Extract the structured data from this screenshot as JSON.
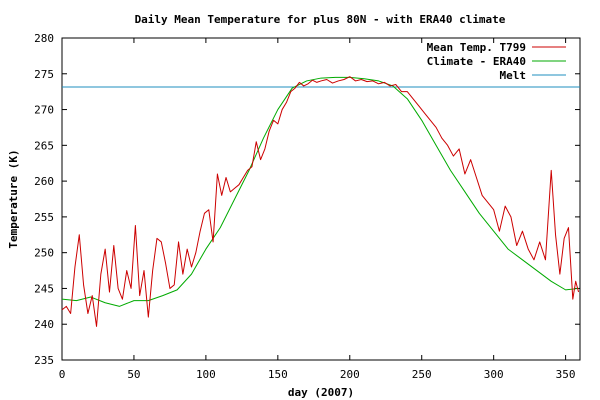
{
  "chart_data": {
    "type": "line",
    "title": "Daily Mean Temperature for plus 80N - with ERA40 climate",
    "xlabel": "day (2007)",
    "ylabel": "Temperature (K)",
    "xlim": [
      0,
      360
    ],
    "ylim": [
      235,
      280
    ],
    "x_ticks": [
      0,
      50,
      100,
      150,
      200,
      250,
      300,
      350
    ],
    "y_ticks": [
      235,
      240,
      245,
      250,
      255,
      260,
      265,
      270,
      275,
      280
    ],
    "legend_position": "top-right",
    "series": [
      {
        "name": "Mean Temp. T799",
        "color": "#cc0000",
        "x": [
          0,
          3,
          6,
          9,
          12,
          15,
          18,
          21,
          24,
          27,
          30,
          33,
          36,
          39,
          42,
          45,
          48,
          51,
          54,
          57,
          60,
          63,
          66,
          69,
          72,
          75,
          78,
          81,
          84,
          87,
          90,
          93,
          96,
          99,
          102,
          105,
          108,
          111,
          114,
          117,
          120,
          123,
          126,
          129,
          132,
          135,
          138,
          141,
          144,
          147,
          150,
          153,
          156,
          159,
          162,
          165,
          168,
          171,
          174,
          177,
          180,
          184,
          188,
          192,
          196,
          200,
          204,
          208,
          212,
          216,
          220,
          224,
          228,
          232,
          236,
          240,
          244,
          248,
          252,
          256,
          260,
          264,
          268,
          272,
          276,
          280,
          284,
          288,
          292,
          296,
          300,
          304,
          308,
          312,
          316,
          320,
          324,
          328,
          332,
          336,
          340,
          343,
          346,
          349,
          352,
          355,
          357,
          359
        ],
        "values": [
          242.0,
          242.5,
          241.5,
          248.0,
          252.5,
          245.5,
          241.5,
          244.0,
          239.7,
          247.0,
          250.5,
          244.5,
          251.0,
          245.0,
          243.5,
          247.5,
          245.0,
          253.8,
          244.0,
          247.5,
          241.0,
          247.5,
          252.0,
          251.5,
          248.5,
          245.0,
          245.5,
          251.5,
          247.0,
          250.5,
          248.0,
          250.0,
          253.0,
          255.5,
          256.0,
          251.5,
          261.0,
          258.0,
          260.5,
          258.5,
          259.0,
          259.5,
          260.5,
          261.5,
          262.0,
          265.5,
          263.0,
          264.5,
          267.0,
          268.5,
          268.0,
          270.0,
          271.0,
          272.5,
          273.0,
          273.8,
          273.3,
          273.6,
          274.1,
          273.8,
          274.0,
          274.2,
          273.7,
          274.0,
          274.2,
          274.6,
          274.0,
          274.2,
          273.9,
          274.0,
          273.6,
          273.8,
          273.3,
          273.5,
          272.5,
          272.5,
          271.5,
          270.5,
          269.5,
          268.5,
          267.5,
          266.0,
          265.0,
          263.5,
          264.5,
          261.0,
          263.0,
          260.5,
          258.0,
          257.0,
          256.0,
          253.0,
          256.5,
          255.0,
          251.0,
          253.0,
          250.5,
          249.0,
          251.5,
          249.0,
          261.5,
          252.5,
          247.0,
          252.0,
          253.5,
          243.5,
          246.0,
          244.5
        ]
      },
      {
        "name": "Climate - ERA40",
        "color": "#00aa00",
        "x": [
          0,
          10,
          20,
          30,
          40,
          50,
          60,
          70,
          80,
          90,
          100,
          110,
          120,
          130,
          140,
          150,
          160,
          170,
          180,
          190,
          200,
          210,
          220,
          230,
          240,
          250,
          260,
          270,
          280,
          290,
          300,
          310,
          320,
          330,
          340,
          350,
          359
        ],
        "values": [
          243.5,
          243.3,
          243.8,
          243.0,
          242.5,
          243.3,
          243.3,
          244.0,
          244.8,
          247.0,
          250.5,
          253.5,
          257.5,
          261.5,
          266.0,
          270.0,
          273.0,
          274.0,
          274.4,
          274.5,
          274.5,
          274.3,
          274.0,
          273.3,
          271.5,
          268.5,
          265.0,
          261.5,
          258.5,
          255.5,
          253.0,
          250.5,
          249.0,
          247.5,
          246.0,
          244.8,
          245.0
        ]
      },
      {
        "name": "Melt",
        "color": "#1f8fbf",
        "x": [
          0,
          360
        ],
        "values": [
          273.15,
          273.15
        ]
      }
    ]
  }
}
